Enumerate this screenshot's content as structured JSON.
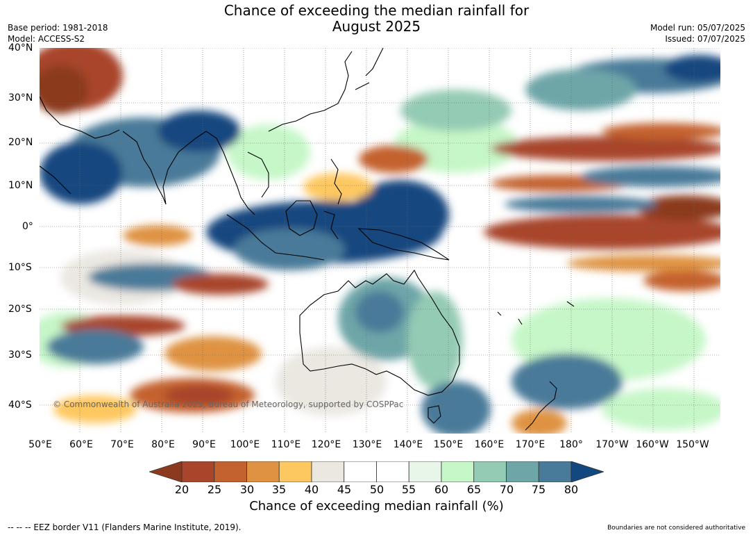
{
  "title_line1": "Chance of exceeding the median rainfall for",
  "title_line2": "August 2025",
  "base_period": "Base period: 1981-2018",
  "model": "Model: ACCESS-S2",
  "model_run": "Model run: 05/07/2025",
  "issued": "Issued: 07/07/2025",
  "copyright": "© Commonwealth of Australia 2025, Bureau of Meteorology, supported by COSPPac",
  "lat_labels": [
    "40°N",
    "30°N",
    "20°N",
    "10°N",
    "0°",
    "10°S",
    "20°S",
    "30°S",
    "40°S"
  ],
  "lon_labels": [
    "50°E",
    "60°E",
    "70°E",
    "80°E",
    "90°E",
    "100°E",
    "110°E",
    "120°E",
    "130°E",
    "140°E",
    "150°E",
    "160°E",
    "170°E",
    "180°",
    "170°W",
    "160°W",
    "150°W"
  ],
  "colorbar": {
    "ticks": [
      "20",
      "25",
      "30",
      "35",
      "40",
      "45",
      "50",
      "55",
      "60",
      "65",
      "70",
      "75",
      "80"
    ],
    "colors": [
      "#8b3a1f",
      "#a8452a",
      "#c4622f",
      "#df9342",
      "#fec861",
      "#ebe8e2",
      "#ffffff",
      "#ffffff",
      "#e7f6e8",
      "#c6f7c8",
      "#94cbb4",
      "#6ea6a8",
      "#487a99",
      "#12477f"
    ],
    "label": "Chance of exceeding median rainfall (%)"
  },
  "eez_note": "--  --  -- EEZ border V11 (Flanders Marine Institute, 2019).",
  "disclaimer": "Boundaries are not considered authoritative"
}
